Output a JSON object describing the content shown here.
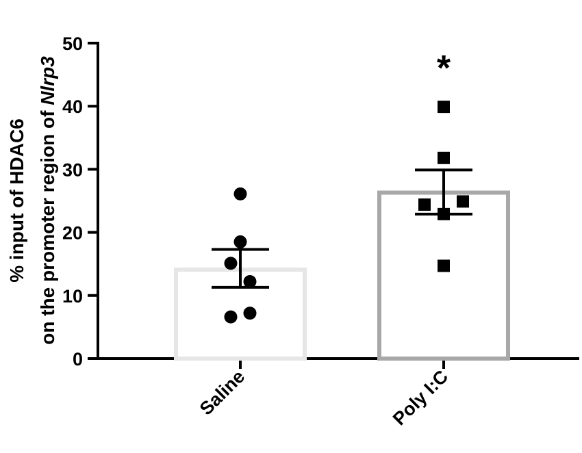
{
  "chart_data": {
    "type": "bar",
    "title": "",
    "xlabel": "",
    "ylabel_line1": "% input of HDAC6",
    "ylabel_line2_prefix": "on the promoter region of ",
    "ylabel_line2_gene": "Nlrp3",
    "ylim": [
      0,
      50
    ],
    "yticks": [
      0,
      10,
      20,
      30,
      40,
      50
    ],
    "categories": [
      "Saline",
      "Poly I:C"
    ],
    "values": [
      14.1,
      26.3
    ],
    "error": [
      {
        "low": 11.3,
        "high": 17.3
      },
      {
        "low": 22.9,
        "high": 29.9
      }
    ],
    "points": [
      [
        26.1,
        18.5,
        15.1,
        12.2,
        7.2,
        6.6
      ],
      [
        39.9,
        31.8,
        24.9,
        24.4,
        22.9,
        14.7
      ]
    ],
    "markers": [
      "circle",
      "square"
    ],
    "bar_colors": [
      "#e6e6e6",
      "#a8a8a8"
    ],
    "significance": [
      "",
      "*"
    ],
    "grid": false,
    "legend": "none"
  }
}
